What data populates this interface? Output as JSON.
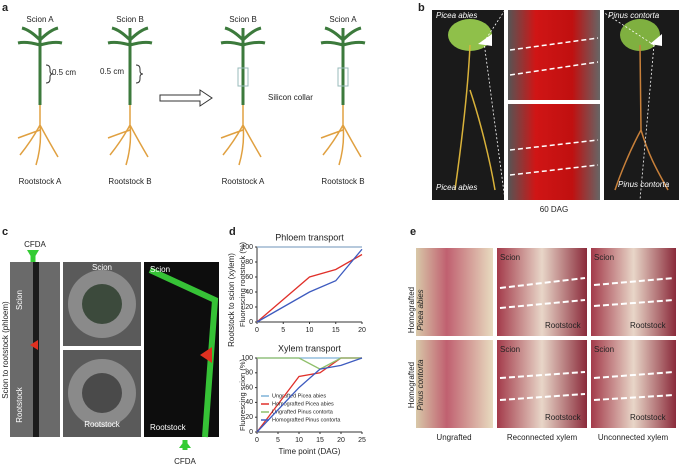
{
  "panel_labels": [
    "a",
    "b",
    "c",
    "d",
    "e"
  ],
  "panel_a": {
    "top": [
      "Scion A",
      "Scion B",
      "Scion B",
      "Scion A"
    ],
    "gap": [
      "0.5 cm",
      "0.5 cm"
    ],
    "collar": "Silicon collar",
    "bottom": [
      "Rootstock A",
      "Rootstock B",
      "Rootstock A",
      "Rootstock B"
    ]
  },
  "panel_b": {
    "labels": [
      "Picea abies",
      "Pinus contorta",
      "Picea abies",
      "Pinus contorta"
    ],
    "caption": "60 DAG"
  },
  "panel_c": {
    "dye": [
      "CFDA",
      "CFDA"
    ],
    "side": "Scion to rootstock (phloem)",
    "strip": [
      "Scion",
      "Rootstock"
    ],
    "cross": [
      "Scion",
      "Rootstock"
    ],
    "long": [
      "Scion",
      "Rootstock"
    ]
  },
  "panel_d": {
    "side": "Rootstock to scion (xylem)"
  },
  "chart_data": [
    {
      "type": "line",
      "title": "Phloem transport",
      "ylabel": "Fluorescing rootstock (%)",
      "x": [
        0,
        10,
        15,
        20
      ],
      "xlim": [
        0,
        20
      ],
      "xticks": [
        0,
        5,
        10,
        15,
        20
      ],
      "ylim": [
        0,
        100
      ],
      "yticks": [
        0,
        20,
        40,
        60,
        80,
        100
      ],
      "series": [
        {
          "name": "Ungrafted Picea abies",
          "color": "#8aa9c8",
          "values": [
            100,
            100,
            100,
            100
          ]
        },
        {
          "name": "Homografted Picea abies",
          "color": "#e0302a",
          "values": [
            0,
            60,
            70,
            90
          ]
        },
        {
          "name": "Homografted Pinus contorta",
          "color": "#3e5bbf",
          "values": [
            0,
            40,
            55,
            97
          ]
        }
      ]
    },
    {
      "type": "line",
      "title": "Xylem transport",
      "ylabel": "Fluorescing scion (%)",
      "xlabel": "Time point (DAG)",
      "x": [
        0,
        10,
        15,
        20,
        25
      ],
      "xlim": [
        0,
        25
      ],
      "xticks": [
        0,
        5,
        10,
        15,
        20,
        25
      ],
      "ylim": [
        0,
        100
      ],
      "yticks": [
        0,
        20,
        40,
        60,
        80,
        100
      ],
      "legend": "lower left",
      "series": [
        {
          "name": "Ungrafted Picea abies",
          "color": "#7fb2d8",
          "values": [
            100,
            100,
            100,
            100,
            100
          ]
        },
        {
          "name": "Homografted Picea abies",
          "color": "#e0302a",
          "values": [
            0,
            75,
            80,
            100,
            100
          ]
        },
        {
          "name": "Ungrafted Pinus contorta",
          "color": "#8fbf6a",
          "values": [
            100,
            100,
            85,
            100,
            100
          ]
        },
        {
          "name": "Homografted Pinus contorta",
          "color": "#3e5bbf",
          "values": [
            0,
            60,
            85,
            90,
            100
          ]
        }
      ]
    }
  ],
  "panel_e": {
    "rows": [
      [
        "Homografted",
        "Picea abies"
      ],
      [
        "Homografted",
        "Pinus contorta"
      ]
    ],
    "tiles": [
      "Scion",
      "Rootstock",
      "Scion",
      "Rootstock",
      "Scion",
      "Rootstock",
      "Scion",
      "Rootstock"
    ],
    "columns": [
      "Ungrafted",
      "Reconnected xylem",
      "Unconnected xylem"
    ]
  }
}
